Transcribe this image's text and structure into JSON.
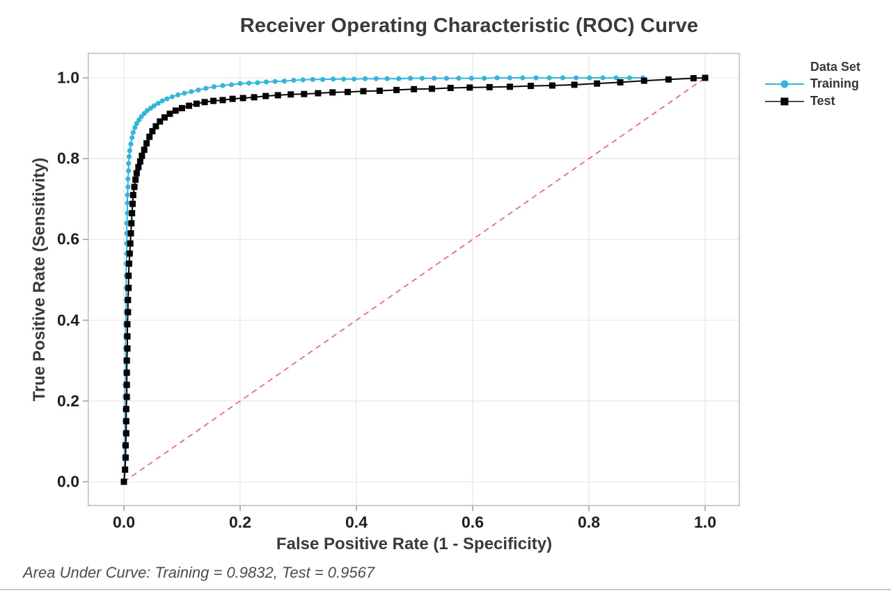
{
  "chart_data": {
    "type": "line",
    "title": "Receiver Operating Characteristic (ROC) Curve",
    "xlabel": "False Positive Rate (1 - Specificity)",
    "ylabel": "True Positive Rate (Sensitivity)",
    "xlim": [
      0.0,
      1.0
    ],
    "ylim": [
      0.0,
      1.0
    ],
    "xticks": [
      0.0,
      0.2,
      0.4,
      0.6,
      0.8,
      1.0
    ],
    "xtick_labels": [
      "0.0",
      "0.2",
      "0.4",
      "0.6",
      "0.8",
      "1.0"
    ],
    "yticks": [
      0.0,
      0.2,
      0.4,
      0.6,
      0.8,
      1.0
    ],
    "ytick_labels": [
      "0.0",
      "0.2",
      "0.4",
      "0.6",
      "0.8",
      "1.0"
    ],
    "grid": true,
    "legend": {
      "title": "Data Set",
      "position": "right",
      "entries": [
        "Training",
        "Test"
      ]
    },
    "annotation": "Area Under Curve: Training = 0.9832, Test = 0.9567",
    "auc": {
      "training": 0.9832,
      "test": 0.9567
    },
    "reference_line": {
      "type": "diagonal",
      "style": "dashed",
      "color": "#e45f5f",
      "from": [
        0,
        0
      ],
      "to": [
        1,
        1
      ]
    },
    "colors": {
      "grid": "#e9e9e9",
      "frame": "#bdbdbd",
      "tick": "#9a9a9a",
      "title": "#3a3a3a",
      "tick_label": "#1f1f1f",
      "axis_label": "#3a3a3a",
      "legend_title": "#3a3a3a",
      "legend_item": "#333333",
      "annotation": "#4d4d4d",
      "bottom_rule": "#c9c9c9",
      "test_legend_line": "#4a4a4a"
    },
    "series": [
      {
        "name": "Training",
        "marker": "circle",
        "color": "#36b5d9",
        "points": [
          [
            0,
            0
          ],
          [
            0.001,
            0.03
          ],
          [
            0.001,
            0.06
          ],
          [
            0.001,
            0.09
          ],
          [
            0.002,
            0.12
          ],
          [
            0.002,
            0.15
          ],
          [
            0.002,
            0.18
          ],
          [
            0.002,
            0.21
          ],
          [
            0.002,
            0.24
          ],
          [
            0.003,
            0.27
          ],
          [
            0.003,
            0.3
          ],
          [
            0.003,
            0.33
          ],
          [
            0.003,
            0.36
          ],
          [
            0.003,
            0.39
          ],
          [
            0.004,
            0.42
          ],
          [
            0.004,
            0.45
          ],
          [
            0.004,
            0.48
          ],
          [
            0.004,
            0.51
          ],
          [
            0.004,
            0.54
          ],
          [
            0.005,
            0.565
          ],
          [
            0.005,
            0.59
          ],
          [
            0.005,
            0.615
          ],
          [
            0.005,
            0.64
          ],
          [
            0.006,
            0.665
          ],
          [
            0.006,
            0.69
          ],
          [
            0.006,
            0.71
          ],
          [
            0.007,
            0.73
          ],
          [
            0.007,
            0.75
          ],
          [
            0.008,
            0.77
          ],
          [
            0.008,
            0.788
          ],
          [
            0.009,
            0.805
          ],
          [
            0.01,
            0.82
          ],
          [
            0.012,
            0.836
          ],
          [
            0.014,
            0.852
          ],
          [
            0.016,
            0.865
          ],
          [
            0.019,
            0.877
          ],
          [
            0.022,
            0.887
          ],
          [
            0.026,
            0.896
          ],
          [
            0.03,
            0.904
          ],
          [
            0.035,
            0.912
          ],
          [
            0.04,
            0.919
          ],
          [
            0.046,
            0.925
          ],
          [
            0.052,
            0.931
          ],
          [
            0.059,
            0.937
          ],
          [
            0.066,
            0.943
          ],
          [
            0.074,
            0.948
          ],
          [
            0.083,
            0.953
          ],
          [
            0.093,
            0.958
          ],
          [
            0.104,
            0.962
          ],
          [
            0.116,
            0.966
          ],
          [
            0.128,
            0.97
          ],
          [
            0.141,
            0.974
          ],
          [
            0.155,
            0.978
          ],
          [
            0.17,
            0.981
          ],
          [
            0.185,
            0.983
          ],
          [
            0.2,
            0.986
          ],
          [
            0.215,
            0.987
          ],
          [
            0.23,
            0.988
          ],
          [
            0.245,
            0.99
          ],
          [
            0.26,
            0.991
          ],
          [
            0.276,
            0.992
          ],
          [
            0.292,
            0.994
          ],
          [
            0.308,
            0.995
          ],
          [
            0.325,
            0.996
          ],
          [
            0.342,
            0.996
          ],
          [
            0.36,
            0.997
          ],
          [
            0.378,
            0.997
          ],
          [
            0.396,
            0.997
          ],
          [
            0.415,
            0.998
          ],
          [
            0.434,
            0.998
          ],
          [
            0.453,
            0.998
          ],
          [
            0.473,
            0.998
          ],
          [
            0.493,
            0.999
          ],
          [
            0.513,
            0.999
          ],
          [
            0.534,
            0.999
          ],
          [
            0.555,
            0.999
          ],
          [
            0.576,
            0.999
          ],
          [
            0.598,
            0.999
          ],
          [
            0.62,
            0.999
          ],
          [
            0.642,
            1
          ],
          [
            0.664,
            1
          ],
          [
            0.686,
            1
          ],
          [
            0.709,
            1
          ],
          [
            0.732,
            1
          ],
          [
            0.755,
            1
          ],
          [
            0.778,
            1
          ],
          [
            0.801,
            1
          ],
          [
            0.824,
            1
          ],
          [
            0.847,
            1
          ],
          [
            0.87,
            1
          ],
          [
            0.893,
            1
          ]
        ]
      },
      {
        "name": "Test",
        "marker": "square",
        "color": "#050505",
        "points": [
          [
            0,
            0
          ],
          [
            0.002,
            0.03
          ],
          [
            0.003,
            0.06
          ],
          [
            0.003,
            0.09
          ],
          [
            0.004,
            0.12
          ],
          [
            0.004,
            0.15
          ],
          [
            0.004,
            0.18
          ],
          [
            0.005,
            0.21
          ],
          [
            0.005,
            0.24
          ],
          [
            0.005,
            0.27
          ],
          [
            0.005,
            0.3
          ],
          [
            0.006,
            0.33
          ],
          [
            0.006,
            0.36
          ],
          [
            0.006,
            0.39
          ],
          [
            0.007,
            0.42
          ],
          [
            0.007,
            0.45
          ],
          [
            0.008,
            0.48
          ],
          [
            0.008,
            0.51
          ],
          [
            0.009,
            0.54
          ],
          [
            0.01,
            0.565
          ],
          [
            0.011,
            0.59
          ],
          [
            0.012,
            0.615
          ],
          [
            0.013,
            0.64
          ],
          [
            0.014,
            0.665
          ],
          [
            0.015,
            0.688
          ],
          [
            0.016,
            0.71
          ],
          [
            0.018,
            0.73
          ],
          [
            0.02,
            0.748
          ],
          [
            0.022,
            0.764
          ],
          [
            0.025,
            0.779
          ],
          [
            0.028,
            0.793
          ],
          [
            0.031,
            0.807
          ],
          [
            0.035,
            0.822
          ],
          [
            0.039,
            0.838
          ],
          [
            0.044,
            0.854
          ],
          [
            0.049,
            0.868
          ],
          [
            0.055,
            0.88
          ],
          [
            0.062,
            0.892
          ],
          [
            0.07,
            0.902
          ],
          [
            0.079,
            0.911
          ],
          [
            0.089,
            0.919
          ],
          [
            0.1,
            0.925
          ],
          [
            0.112,
            0.931
          ],
          [
            0.125,
            0.936
          ],
          [
            0.139,
            0.94
          ],
          [
            0.154,
            0.943
          ],
          [
            0.17,
            0.945
          ],
          [
            0.187,
            0.948
          ],
          [
            0.205,
            0.95
          ],
          [
            0.224,
            0.952
          ],
          [
            0.244,
            0.955
          ],
          [
            0.265,
            0.957
          ],
          [
            0.287,
            0.959
          ],
          [
            0.31,
            0.96
          ],
          [
            0.334,
            0.962
          ],
          [
            0.359,
            0.964
          ],
          [
            0.385,
            0.965
          ],
          [
            0.412,
            0.967
          ],
          [
            0.44,
            0.968
          ],
          [
            0.469,
            0.97
          ],
          [
            0.499,
            0.972
          ],
          [
            0.53,
            0.973
          ],
          [
            0.562,
            0.975
          ],
          [
            0.595,
            0.976
          ],
          [
            0.629,
            0.977
          ],
          [
            0.664,
            0.978
          ],
          [
            0.7,
            0.98
          ],
          [
            0.737,
            0.981
          ],
          [
            0.775,
            0.983
          ],
          [
            0.814,
            0.986
          ],
          [
            0.854,
            0.989
          ],
          [
            0.895,
            0.993
          ],
          [
            0.937,
            0.996
          ],
          [
            0.98,
            0.999
          ],
          [
            1,
            1
          ]
        ]
      }
    ]
  }
}
